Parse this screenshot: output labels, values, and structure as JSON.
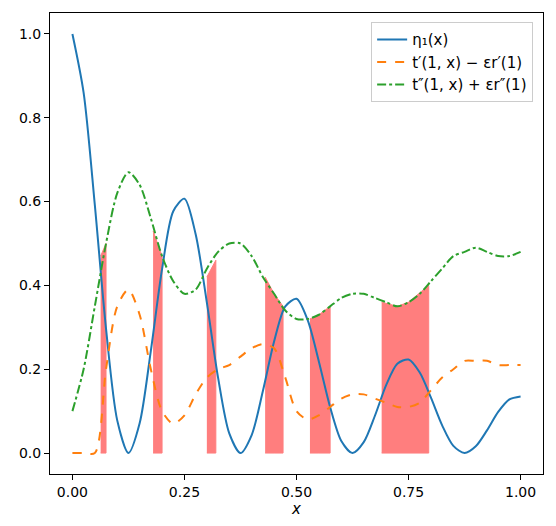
{
  "chart_data": {
    "type": "line",
    "x_label": "x",
    "x": [
      0,
      0.025,
      0.05,
      0.075,
      0.1,
      0.125,
      0.15,
      0.175,
      0.2,
      0.225,
      0.25,
      0.275,
      0.3,
      0.325,
      0.35,
      0.375,
      0.4,
      0.425,
      0.45,
      0.475,
      0.5,
      0.525,
      0.55,
      0.575,
      0.6,
      0.625,
      0.65,
      0.675,
      0.7,
      0.725,
      0.75,
      0.775,
      0.8,
      0.825,
      0.85,
      0.875,
      0.9,
      0.925,
      0.95,
      0.975,
      1.0
    ],
    "series": [
      {
        "name": "η₁(x)",
        "color": "#1f77b4",
        "line_style": "solid",
        "values": [
          1.0,
          0.86,
          0.592,
          0.297,
          0.078,
          0.0,
          0.071,
          0.244,
          0.439,
          0.577,
          0.607,
          0.522,
          0.359,
          0.18,
          0.047,
          0.0,
          0.043,
          0.148,
          0.266,
          0.35,
          0.368,
          0.317,
          0.218,
          0.11,
          0.029,
          0.0,
          0.026,
          0.089,
          0.162,
          0.213,
          0.223,
          0.192,
          0.132,
          0.066,
          0.017,
          0.0,
          0.016,
          0.054,
          0.098,
          0.128,
          0.135
        ]
      },
      {
        "name": "t′(1, x) − εr′(1)",
        "color": "#ff7f0e",
        "line_style": "dash",
        "values": [
          0.0,
          0.0,
          0.0,
          0.2,
          0.35,
          0.39,
          0.33,
          0.2,
          0.1,
          0.07,
          0.09,
          0.14,
          0.18,
          0.2,
          0.21,
          0.23,
          0.25,
          0.26,
          0.25,
          0.18,
          0.1,
          0.08,
          0.09,
          0.11,
          0.13,
          0.14,
          0.14,
          0.13,
          0.12,
          0.11,
          0.11,
          0.12,
          0.15,
          0.18,
          0.2,
          0.22,
          0.22,
          0.22,
          0.21,
          0.21,
          0.21
        ]
      },
      {
        "name": "t″(1, x) + εr″(1)",
        "color": "#2ca02c",
        "line_style": "dashdot",
        "values": [
          0.1,
          0.2,
          0.35,
          0.5,
          0.62,
          0.67,
          0.64,
          0.56,
          0.47,
          0.41,
          0.38,
          0.39,
          0.44,
          0.48,
          0.5,
          0.5,
          0.47,
          0.42,
          0.38,
          0.34,
          0.32,
          0.32,
          0.33,
          0.35,
          0.37,
          0.38,
          0.38,
          0.37,
          0.36,
          0.35,
          0.36,
          0.38,
          0.41,
          0.44,
          0.47,
          0.48,
          0.49,
          0.48,
          0.47,
          0.47,
          0.48
        ]
      }
    ],
    "shaded": {
      "color": "#ff0000",
      "regions": [
        {
          "x": [
            0.063,
            0.075
          ],
          "values": [
            0.47,
            0.5
          ]
        },
        {
          "x": [
            0.18,
            0.2
          ],
          "values": [
            0.53,
            0.47
          ]
        },
        {
          "x": [
            0.3,
            0.32
          ],
          "values": [
            0.42,
            0.46
          ]
        },
        {
          "x": [
            0.43,
            0.45,
            0.47
          ],
          "values": [
            0.42,
            0.38,
            0.35
          ]
        },
        {
          "x": [
            0.53,
            0.55,
            0.575
          ],
          "values": [
            0.32,
            0.33,
            0.35
          ]
        },
        {
          "x": [
            0.69,
            0.725,
            0.75,
            0.795
          ],
          "values": [
            0.36,
            0.35,
            0.36,
            0.4
          ]
        }
      ]
    },
    "xlim": [
      -0.05,
      1.05
    ],
    "ylim": [
      -0.05,
      1.05
    ],
    "xticks": [
      {
        "value": 0,
        "label": "0.00"
      },
      0.25,
      0.5,
      0.75,
      {
        "value": 1,
        "label": "1.00"
      }
    ],
    "yticks": [
      {
        "value": 0,
        "label": "0.0"
      },
      0.2,
      0.4,
      0.6,
      0.8,
      {
        "value": 1,
        "label": "1.0"
      }
    ],
    "legend": "upper right",
    "grid": false
  }
}
